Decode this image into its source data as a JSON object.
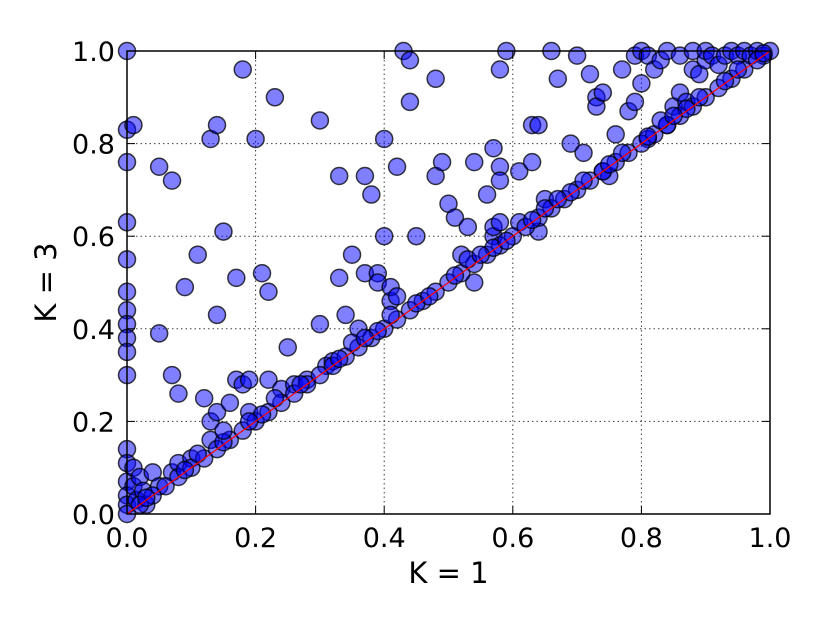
{
  "chart_data": {
    "type": "scatter",
    "title": "",
    "xlabel": "K = 1",
    "ylabel": "K = 3",
    "xlim": [
      0.0,
      1.0
    ],
    "ylim": [
      0.0,
      1.0
    ],
    "xticks": [
      "0.0",
      "0.2",
      "0.4",
      "0.6",
      "0.8",
      "1.0"
    ],
    "yticks": [
      "0.0",
      "0.2",
      "0.4",
      "0.6",
      "0.8",
      "1.0"
    ],
    "grid": true,
    "legend": "none",
    "marker_color": "#0000ff",
    "marker_alpha": 0.5,
    "reference_line": {
      "from": [
        0.0,
        0.0
      ],
      "to": [
        1.0,
        1.0
      ],
      "color": "#ff0000"
    },
    "series": [
      {
        "points": [
          [
            0.0,
            1.0
          ],
          [
            0.0,
            0.83
          ],
          [
            0.0,
            0.76
          ],
          [
            0.0,
            0.63
          ],
          [
            0.0,
            0.55
          ],
          [
            0.0,
            0.48
          ],
          [
            0.0,
            0.44
          ],
          [
            0.0,
            0.41
          ],
          [
            0.0,
            0.38
          ],
          [
            0.0,
            0.35
          ],
          [
            0.0,
            0.3
          ],
          [
            0.0,
            0.14
          ],
          [
            0.0,
            0.11
          ],
          [
            0.0,
            0.07
          ],
          [
            0.0,
            0.04
          ],
          [
            0.0,
            0.02
          ],
          [
            0.0,
            0.0
          ],
          [
            0.01,
            0.84
          ],
          [
            0.01,
            0.1
          ],
          [
            0.01,
            0.06
          ],
          [
            0.015,
            0.03
          ],
          [
            0.02,
            0.08
          ],
          [
            0.025,
            0.05
          ],
          [
            0.03,
            0.02
          ],
          [
            0.04,
            0.09
          ],
          [
            0.05,
            0.39
          ],
          [
            0.05,
            0.06
          ],
          [
            0.05,
            0.75
          ],
          [
            0.07,
            0.72
          ],
          [
            0.07,
            0.3
          ],
          [
            0.08,
            0.26
          ],
          [
            0.09,
            0.49
          ],
          [
            0.07,
            0.09
          ],
          [
            0.08,
            0.11
          ],
          [
            0.1,
            0.12
          ],
          [
            0.11,
            0.56
          ],
          [
            0.12,
            0.25
          ],
          [
            0.13,
            0.2
          ],
          [
            0.13,
            0.16
          ],
          [
            0.13,
            0.81
          ],
          [
            0.14,
            0.84
          ],
          [
            0.14,
            0.43
          ],
          [
            0.14,
            0.22
          ],
          [
            0.15,
            0.61
          ],
          [
            0.16,
            0.24
          ],
          [
            0.17,
            0.29
          ],
          [
            0.17,
            0.51
          ],
          [
            0.18,
            0.28
          ],
          [
            0.18,
            0.96
          ],
          [
            0.19,
            0.29
          ],
          [
            0.19,
            0.22
          ],
          [
            0.2,
            0.81
          ],
          [
            0.21,
            0.52
          ],
          [
            0.22,
            0.48
          ],
          [
            0.22,
            0.29
          ],
          [
            0.23,
            0.9
          ],
          [
            0.24,
            0.27
          ],
          [
            0.25,
            0.36
          ],
          [
            0.26,
            0.28
          ],
          [
            0.28,
            0.29
          ],
          [
            0.3,
            0.85
          ],
          [
            0.3,
            0.41
          ],
          [
            0.31,
            0.32
          ],
          [
            0.32,
            0.33
          ],
          [
            0.33,
            0.73
          ],
          [
            0.33,
            0.51
          ],
          [
            0.34,
            0.43
          ],
          [
            0.35,
            0.56
          ],
          [
            0.36,
            0.4
          ],
          [
            0.37,
            0.73
          ],
          [
            0.37,
            0.52
          ],
          [
            0.38,
            0.69
          ],
          [
            0.39,
            0.52
          ],
          [
            0.39,
            0.5
          ],
          [
            0.4,
            0.6
          ],
          [
            0.4,
            0.81
          ],
          [
            0.41,
            0.46
          ],
          [
            0.42,
            0.75
          ],
          [
            0.41,
            0.49
          ],
          [
            0.42,
            0.47
          ],
          [
            0.43,
            1.0
          ],
          [
            0.44,
            0.98
          ],
          [
            0.44,
            0.89
          ],
          [
            0.45,
            0.6
          ],
          [
            0.48,
            0.73
          ],
          [
            0.48,
            0.94
          ],
          [
            0.49,
            0.76
          ],
          [
            0.5,
            0.67
          ],
          [
            0.51,
            0.64
          ],
          [
            0.52,
            0.56
          ],
          [
            0.53,
            0.62
          ],
          [
            0.54,
            0.5
          ],
          [
            0.54,
            0.76
          ],
          [
            0.56,
            0.69
          ],
          [
            0.57,
            0.6
          ],
          [
            0.57,
            0.62
          ],
          [
            0.58,
            0.63
          ],
          [
            0.57,
            0.79
          ],
          [
            0.58,
            0.75
          ],
          [
            0.58,
            0.72
          ],
          [
            0.58,
            0.96
          ],
          [
            0.59,
            1.0
          ],
          [
            0.61,
            0.74
          ],
          [
            0.61,
            0.63
          ],
          [
            0.63,
            0.76
          ],
          [
            0.63,
            0.84
          ],
          [
            0.64,
            0.84
          ],
          [
            0.65,
            0.68
          ],
          [
            0.64,
            0.61
          ],
          [
            0.66,
            1.0
          ],
          [
            0.67,
            0.94
          ],
          [
            0.69,
            0.8
          ],
          [
            0.7,
            0.99
          ],
          [
            0.71,
            0.78
          ],
          [
            0.72,
            0.95
          ],
          [
            0.73,
            0.9
          ],
          [
            0.73,
            0.88
          ],
          [
            0.74,
            0.91
          ],
          [
            0.74,
            0.74
          ],
          [
            0.75,
            0.73
          ],
          [
            0.76,
            0.82
          ],
          [
            0.77,
            0.96
          ],
          [
            0.78,
            0.87
          ],
          [
            0.79,
            0.89
          ],
          [
            0.79,
            0.99
          ],
          [
            0.8,
            1.0
          ],
          [
            0.8,
            0.93
          ],
          [
            0.81,
            0.99
          ],
          [
            0.81,
            0.81
          ],
          [
            0.82,
            0.96
          ],
          [
            0.83,
            0.98
          ],
          [
            0.84,
            1.0
          ],
          [
            0.84,
            0.84
          ],
          [
            0.85,
            0.88
          ],
          [
            0.86,
            0.91
          ],
          [
            0.86,
            0.99
          ],
          [
            0.87,
            0.89
          ],
          [
            0.88,
            1.0
          ],
          [
            0.88,
            0.96
          ],
          [
            0.89,
            0.95
          ],
          [
            0.9,
            0.98
          ],
          [
            0.9,
            1.0
          ],
          [
            0.91,
            0.99
          ],
          [
            0.92,
            0.97
          ],
          [
            0.93,
            0.99
          ],
          [
            0.94,
            1.0
          ],
          [
            0.95,
            0.99
          ],
          [
            0.96,
            1.0
          ],
          [
            0.97,
            0.99
          ],
          [
            0.98,
            1.0
          ],
          [
            0.99,
            0.99
          ],
          [
            1.0,
            1.0
          ],
          [
            0.02,
            0.02
          ],
          [
            0.04,
            0.04
          ],
          [
            0.06,
            0.06
          ],
          [
            0.08,
            0.08
          ],
          [
            0.1,
            0.1
          ],
          [
            0.12,
            0.12
          ],
          [
            0.14,
            0.14
          ],
          [
            0.16,
            0.16
          ],
          [
            0.18,
            0.18
          ],
          [
            0.2,
            0.2
          ],
          [
            0.22,
            0.22
          ],
          [
            0.24,
            0.24
          ],
          [
            0.26,
            0.26
          ],
          [
            0.28,
            0.28
          ],
          [
            0.3,
            0.3
          ],
          [
            0.32,
            0.32
          ],
          [
            0.34,
            0.34
          ],
          [
            0.36,
            0.36
          ],
          [
            0.38,
            0.38
          ],
          [
            0.4,
            0.4
          ],
          [
            0.42,
            0.42
          ],
          [
            0.44,
            0.44
          ],
          [
            0.46,
            0.46
          ],
          [
            0.48,
            0.48
          ],
          [
            0.5,
            0.5
          ],
          [
            0.52,
            0.52
          ],
          [
            0.54,
            0.54
          ],
          [
            0.56,
            0.56
          ],
          [
            0.58,
            0.58
          ],
          [
            0.6,
            0.6
          ],
          [
            0.62,
            0.62
          ],
          [
            0.64,
            0.64
          ],
          [
            0.66,
            0.66
          ],
          [
            0.68,
            0.68
          ],
          [
            0.7,
            0.7
          ],
          [
            0.72,
            0.72
          ],
          [
            0.74,
            0.74
          ],
          [
            0.76,
            0.76
          ],
          [
            0.78,
            0.78
          ],
          [
            0.8,
            0.8
          ],
          [
            0.82,
            0.82
          ],
          [
            0.84,
            0.84
          ],
          [
            0.86,
            0.86
          ],
          [
            0.88,
            0.88
          ],
          [
            0.9,
            0.9
          ],
          [
            0.92,
            0.92
          ],
          [
            0.94,
            0.94
          ],
          [
            0.96,
            0.96
          ],
          [
            0.98,
            0.98
          ],
          [
            0.03,
            0.035
          ],
          [
            0.09,
            0.095
          ],
          [
            0.15,
            0.155
          ],
          [
            0.21,
            0.215
          ],
          [
            0.27,
            0.28
          ],
          [
            0.33,
            0.335
          ],
          [
            0.39,
            0.395
          ],
          [
            0.45,
            0.455
          ],
          [
            0.51,
            0.515
          ],
          [
            0.57,
            0.575
          ],
          [
            0.63,
            0.635
          ],
          [
            0.69,
            0.695
          ],
          [
            0.75,
            0.755
          ],
          [
            0.81,
            0.815
          ],
          [
            0.87,
            0.875
          ],
          [
            0.93,
            0.935
          ],
          [
            0.99,
            0.995
          ],
          [
            0.11,
            0.13
          ],
          [
            0.15,
            0.18
          ],
          [
            0.19,
            0.2
          ],
          [
            0.23,
            0.25
          ],
          [
            0.35,
            0.37
          ],
          [
            0.37,
            0.38
          ],
          [
            0.41,
            0.43
          ],
          [
            0.47,
            0.47
          ],
          [
            0.53,
            0.55
          ],
          [
            0.55,
            0.56
          ],
          [
            0.59,
            0.59
          ],
          [
            0.65,
            0.66
          ],
          [
            0.67,
            0.68
          ],
          [
            0.71,
            0.72
          ],
          [
            0.77,
            0.78
          ],
          [
            0.83,
            0.85
          ],
          [
            0.85,
            0.86
          ],
          [
            0.89,
            0.9
          ],
          [
            0.95,
            0.96
          ]
        ]
      }
    ]
  }
}
